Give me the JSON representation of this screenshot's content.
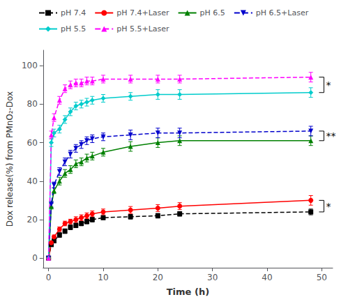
{
  "chart_data": {
    "type": "line",
    "xlabel": "Time (h)",
    "ylabel": "Dox release(%) from PMnO₂-Dox",
    "xlim": [
      -1,
      52
    ],
    "ylim": [
      -5,
      108
    ],
    "xticks": [
      0,
      10,
      20,
      30,
      40,
      50
    ],
    "yticks": [
      0,
      20,
      40,
      60,
      80,
      100
    ],
    "grid": false,
    "legend": "upper left",
    "series": [
      {
        "name": "pH 7.4",
        "color": "#000000",
        "line_style": "dashed",
        "marker": "square",
        "x": [
          0,
          0.5,
          1,
          2,
          3,
          4,
          5,
          6,
          7,
          8,
          10,
          15,
          20,
          24,
          48
        ],
        "values": [
          0,
          7,
          9,
          12,
          14,
          16,
          17,
          18,
          19,
          20,
          21,
          21.5,
          22,
          23,
          24
        ],
        "yerr": [
          0,
          0.8,
          1.0,
          1.2,
          1.2,
          1.2,
          1.2,
          1.2,
          1.2,
          1.2,
          1.0,
          1.2,
          1.2,
          1.2,
          1.5
        ]
      },
      {
        "name": "pH 7.4+Laser",
        "color": "#ff0000",
        "line_style": "solid",
        "marker": "circle",
        "x": [
          0,
          0.5,
          1,
          2,
          3,
          4,
          5,
          6,
          7,
          8,
          10,
          15,
          20,
          24,
          48
        ],
        "values": [
          0,
          8,
          11,
          15,
          18,
          19,
          20,
          21,
          22,
          23,
          24,
          25,
          26,
          27,
          30
        ],
        "yerr": [
          0,
          0.8,
          1.0,
          1.2,
          1.2,
          1.2,
          1.5,
          1.5,
          1.5,
          1.5,
          1.5,
          1.8,
          1.8,
          1.8,
          2.5
        ]
      },
      {
        "name": "pH 6.5",
        "color": "#008000",
        "line_style": "solid",
        "marker": "triangle-up",
        "x": [
          0,
          0.5,
          1,
          2,
          3,
          4,
          5,
          6,
          7,
          8,
          10,
          15,
          20,
          24,
          48
        ],
        "values": [
          0,
          27,
          35,
          40,
          44,
          46,
          49,
          50,
          52,
          53,
          55,
          58,
          60,
          61,
          61
        ],
        "yerr": [
          0,
          1.5,
          1.5,
          2.0,
          2.0,
          2.0,
          2.0,
          2.0,
          2.0,
          2.0,
          2.0,
          2.5,
          2.5,
          2.5,
          2.5
        ]
      },
      {
        "name": "pH 6.5+Laser",
        "color": "#0000cc",
        "line_style": "dashed",
        "marker": "triangle-down",
        "x": [
          0,
          0.5,
          1,
          2,
          3,
          4,
          5,
          6,
          7,
          8,
          10,
          15,
          20,
          24,
          48
        ],
        "values": [
          0,
          28,
          38,
          45,
          50,
          54,
          57,
          59,
          61,
          62,
          63,
          64,
          65,
          65,
          66
        ],
        "yerr": [
          0,
          1.5,
          1.5,
          2.0,
          2.0,
          2.0,
          2.0,
          2.0,
          2.0,
          2.0,
          2.0,
          2.5,
          2.5,
          2.5,
          2.5
        ]
      },
      {
        "name": "pH 5.5",
        "color": "#00cccc",
        "line_style": "solid",
        "marker": "diamond",
        "x": [
          0,
          0.5,
          1,
          2,
          3,
          4,
          5,
          6,
          7,
          8,
          10,
          15,
          20,
          24,
          48
        ],
        "values": [
          0,
          60,
          65,
          67,
          72,
          76,
          79,
          80,
          81,
          82,
          83,
          84,
          85,
          85,
          86
        ],
        "yerr": [
          0,
          2.0,
          2.0,
          2.0,
          2.0,
          2.0,
          2.0,
          2.0,
          2.0,
          2.0,
          2.0,
          2.0,
          2.5,
          2.5,
          2.5
        ]
      },
      {
        "name": "pH 5.5+Laser",
        "color": "#ff00ff",
        "line_style": "dashed",
        "marker": "triangle-up",
        "x": [
          0,
          0.5,
          1,
          2,
          3,
          4,
          5,
          6,
          7,
          8,
          10,
          15,
          20,
          24,
          48
        ],
        "values": [
          0,
          64,
          73,
          82,
          88,
          90,
          91,
          91,
          92,
          92,
          93,
          93,
          93,
          93,
          94
        ],
        "yerr": [
          0,
          2.0,
          2.0,
          2.0,
          2.0,
          2.0,
          2.0,
          2.0,
          2.0,
          2.0,
          2.0,
          2.0,
          2.0,
          2.0,
          2.5
        ]
      }
    ],
    "annotations": [
      {
        "text": "*",
        "x": 49.5,
        "y": [
          86,
          94
        ]
      },
      {
        "text": "**",
        "x": 49.5,
        "y": [
          61,
          66
        ]
      },
      {
        "text": "*",
        "x": 49.5,
        "y": [
          24,
          30
        ]
      }
    ]
  }
}
